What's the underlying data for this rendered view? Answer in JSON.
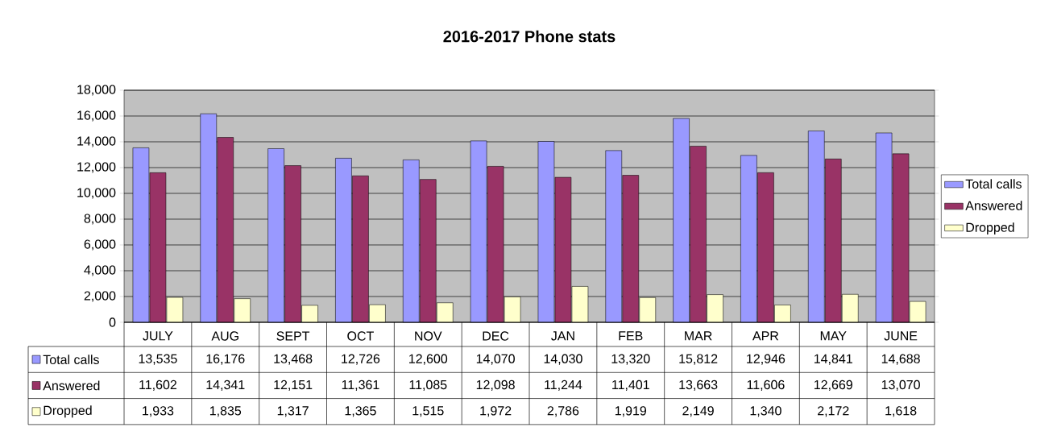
{
  "chart_data": {
    "type": "bar",
    "title": "2016-2017 Phone stats",
    "categories": [
      "JULY",
      "AUG",
      "SEPT",
      "OCT",
      "NOV",
      "DEC",
      "JAN",
      "FEB",
      "MAR",
      "APR",
      "MAY",
      "JUNE"
    ],
    "series": [
      {
        "name": "Total calls",
        "color": "#9999ff",
        "values": [
          13535,
          16176,
          13468,
          12726,
          12600,
          14070,
          14030,
          13320,
          15812,
          12946,
          14841,
          14688
        ],
        "value_labels": [
          "13,535",
          "16,176",
          "13,468",
          "12,726",
          "12,600",
          "14,070",
          "14,030",
          "13,320",
          "15,812",
          "12,946",
          "14,841",
          "14,688"
        ]
      },
      {
        "name": "Answered",
        "color": "#993366",
        "values": [
          11602,
          14341,
          12151,
          11361,
          11085,
          12098,
          11244,
          11401,
          13663,
          11606,
          12669,
          13070
        ],
        "value_labels": [
          "11,602",
          "14,341",
          "12,151",
          "11,361",
          "11,085",
          "12,098",
          "11,244",
          "11,401",
          "13,663",
          "11,606",
          "12,669",
          "13,070"
        ]
      },
      {
        "name": "Dropped",
        "color": "#ffffcc",
        "values": [
          1933,
          1835,
          1317,
          1365,
          1515,
          1972,
          2786,
          1919,
          2149,
          1340,
          2172,
          1618
        ],
        "value_labels": [
          "1,933",
          "1,835",
          "1,317",
          "1,365",
          "1,515",
          "1,972",
          "2,786",
          "1,919",
          "2,149",
          "1,340",
          "2,172",
          "1,618"
        ]
      }
    ],
    "ylim": [
      0,
      18000
    ],
    "yticks": [
      0,
      {
        "value": 2000,
        "label": "2,000"
      },
      {
        "value": 4000,
        "label": "4,000"
      },
      {
        "value": 6000,
        "label": "6,000"
      },
      {
        "value": 8000,
        "label": "8,000"
      },
      {
        "value": 10000,
        "label": "10,000"
      },
      {
        "value": 12000,
        "label": "12,000"
      },
      {
        "value": 14000,
        "label": "14,000"
      },
      {
        "value": 16000,
        "label": "16,000"
      },
      {
        "value": 18000,
        "label": "18,000"
      }
    ],
    "grid": "y",
    "legend": "right"
  }
}
